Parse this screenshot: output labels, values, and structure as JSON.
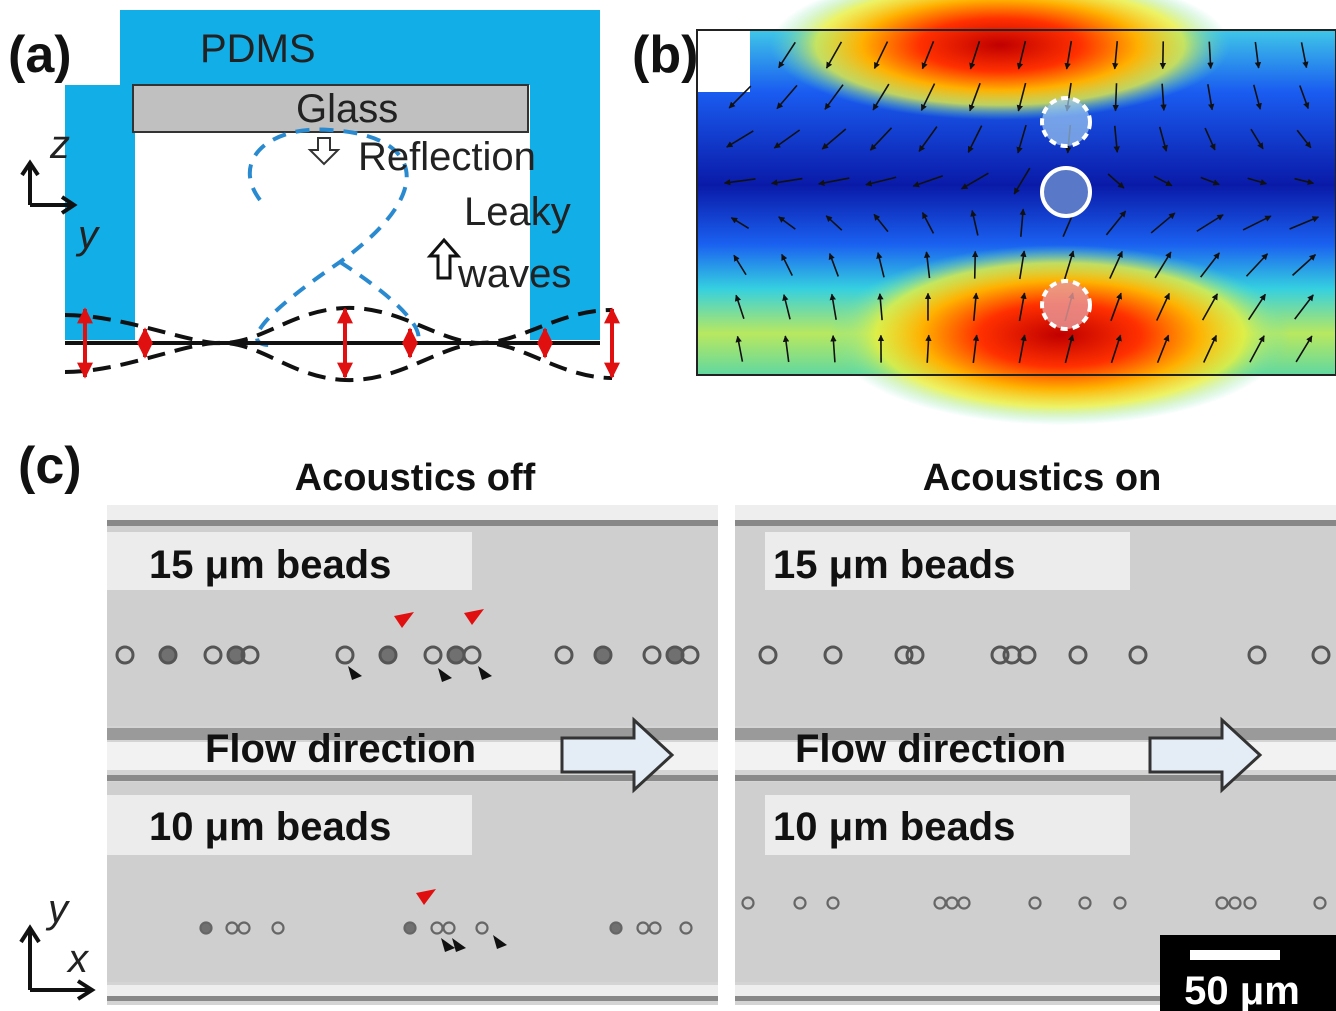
{
  "panel_a": {
    "label": "(a)",
    "pdms": "PDMS",
    "glass": "Glass",
    "reflection": "Reflection",
    "leaky": "Leaky",
    "waves": "waves",
    "axis_z": "z",
    "axis_y": "y"
  },
  "panel_b": {
    "label": "(b)"
  },
  "panel_c": {
    "label": "(c)",
    "columns": [
      {
        "title": "Acoustics off",
        "top_label": "15 μm beads",
        "flow": "Flow direction",
        "bottom_label": "10 μm beads"
      },
      {
        "title": "Acoustics on",
        "top_label": "15 μm beads",
        "flow": "Flow direction",
        "bottom_label": "10 μm beads"
      }
    ],
    "axis_y": "y",
    "axis_x": "x",
    "scale_bar": "50 μm"
  }
}
